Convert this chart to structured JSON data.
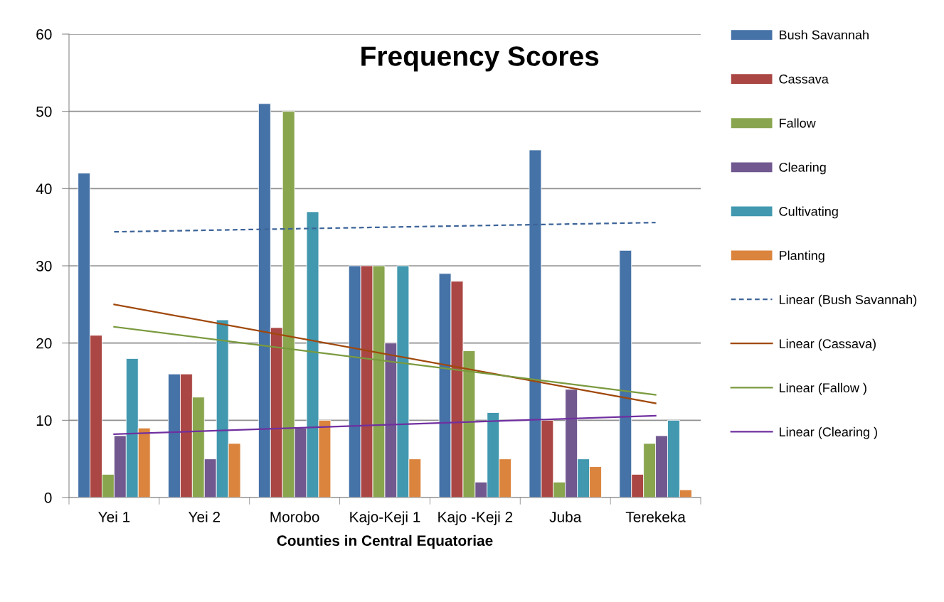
{
  "chart_data": {
    "type": "bar",
    "title": "Frequency Scores",
    "xlabel": "Counties in Central Equatoriae",
    "categories": [
      "Yei 1",
      "Yei 2",
      "Morobo",
      "Kajo-Keji 1",
      "Kajo -Keji 2",
      "Juba",
      "Terekeka"
    ],
    "series": [
      {
        "name": "Bush Savannah",
        "color": "#4572a7",
        "values": [
          42,
          16,
          51,
          30,
          29,
          45,
          32
        ]
      },
      {
        "name": "Cassava",
        "color": "#aa4643",
        "values": [
          21,
          16,
          22,
          30,
          28,
          10,
          3
        ]
      },
      {
        "name": "Fallow",
        "color": "#89a54e",
        "values": [
          3,
          13,
          50,
          30,
          19,
          2,
          7
        ]
      },
      {
        "name": "Clearing",
        "color": "#71588f",
        "values": [
          8,
          5,
          9,
          20,
          2,
          14,
          8
        ]
      },
      {
        "name": "Cultivating",
        "color": "#4198af",
        "values": [
          18,
          23,
          37,
          30,
          11,
          5,
          10
        ]
      },
      {
        "name": "Planting",
        "color": "#db843d",
        "values": [
          9,
          7,
          10,
          5,
          5,
          4,
          1
        ]
      },
      {
        "name": "Linear (Bush Savannah)",
        "type": "line",
        "line_style": "dashed",
        "color": "#3d6499",
        "values": [
          34.4,
          null,
          null,
          null,
          null,
          null,
          35.6
        ]
      },
      {
        "name": "Linear (Cassava)",
        "type": "line",
        "line_style": "solid",
        "color": "#a0480b",
        "values": [
          25.0,
          null,
          null,
          null,
          null,
          null,
          12.2
        ]
      },
      {
        "name": "Linear (Fallow )",
        "type": "line",
        "line_style": "solid",
        "color": "#7a9a3e",
        "values": [
          22.1,
          null,
          null,
          null,
          null,
          null,
          13.3
        ]
      },
      {
        "name": "Linear (Clearing )",
        "type": "line",
        "line_style": "solid",
        "color": "#7030a0",
        "values": [
          8.2,
          null,
          null,
          null,
          null,
          null,
          10.6
        ]
      }
    ],
    "ylim": [
      0,
      60
    ],
    "yticks": [
      0,
      10,
      20,
      30,
      40,
      50,
      60
    ],
    "grid": "y",
    "legend": "right"
  }
}
